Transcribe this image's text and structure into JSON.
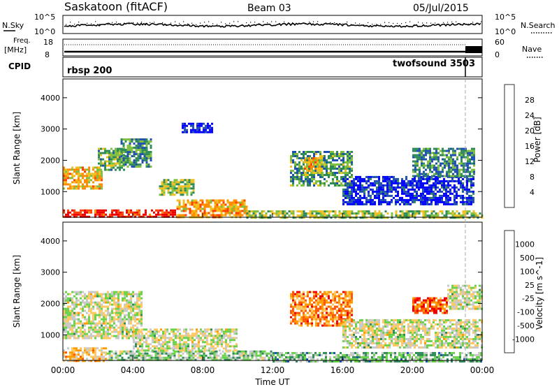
{
  "header": {
    "title": "Saskatoon (fitACF)",
    "beam": "Beam 03",
    "date": "05/Jul/2015"
  },
  "noise_panel": {
    "left_label": "N.Sky",
    "right_label": "N.Search",
    "left_ticks": [
      "10^5",
      "10^0"
    ],
    "right_ticks": [
      "10^5",
      "10^0"
    ]
  },
  "freq_panel": {
    "left_label_line1": "Freq.",
    "left_label_line2": "[MHz]",
    "right_label": "Nave",
    "left_ticks": [
      "18",
      "8"
    ],
    "right_ticks": [
      "60",
      "0"
    ]
  },
  "cpid_panel": {
    "label": "CPID",
    "program_1": "rbsp 200",
    "program_2": "twofsound 3503"
  },
  "x_axis": {
    "label": "Time UT",
    "ticks": [
      "00:00",
      "04:00",
      "08:00",
      "12:00",
      "16:00",
      "20:00",
      "00:00"
    ]
  },
  "colors": {
    "power": [
      "#0000ff",
      "#1f4fb0",
      "#2e8b57",
      "#7fbf3f",
      "#f0c020",
      "#ff8c00",
      "#ff4000",
      "#ee0000"
    ],
    "velocity": [
      "#ee0000",
      "#ff5500",
      "#ff9a00",
      "#ffc860",
      "#c8c8c8",
      "#6ad24a",
      "#2e8b57",
      "#1a50b0",
      "#0000cc"
    ]
  },
  "chart_data": [
    {
      "type": "heatmap",
      "title": "",
      "quantity": "Power",
      "ylabel": "Slant Range [km]",
      "xlabel": "",
      "yticks": [
        1000,
        2000,
        3000,
        4000
      ],
      "ylim": [
        180,
        4600
      ],
      "x_range_hours": [
        0,
        24
      ],
      "colorbar": {
        "label": "Power [dB]",
        "ticks": [
          "4",
          "8",
          "12",
          "16",
          "20",
          "24",
          "28"
        ],
        "range": [
          0,
          32
        ]
      },
      "regions": [
        {
          "t0": 0.0,
          "t1": 6.5,
          "r0": 180,
          "r1": 430,
          "level": 0.88
        },
        {
          "t0": 6.5,
          "t1": 10.5,
          "r0": 180,
          "r1": 750,
          "level": 0.65
        },
        {
          "t0": 10.5,
          "t1": 24.0,
          "r0": 180,
          "r1": 400,
          "level": 0.45
        },
        {
          "t0": 0.0,
          "t1": 2.2,
          "r0": 1100,
          "r1": 1800,
          "level": 0.6
        },
        {
          "t0": 2.0,
          "t1": 3.5,
          "r0": 1700,
          "r1": 2400,
          "level": 0.4
        },
        {
          "t0": 3.3,
          "t1": 5.0,
          "r0": 1800,
          "r1": 2700,
          "level": 0.3
        },
        {
          "t0": 5.5,
          "t1": 7.5,
          "r0": 900,
          "r1": 1400,
          "level": 0.45
        },
        {
          "t0": 13.0,
          "t1": 16.5,
          "r0": 1200,
          "r1": 2300,
          "level": 0.35
        },
        {
          "t0": 13.8,
          "t1": 14.8,
          "r0": 1600,
          "r1": 2100,
          "level": 0.6
        },
        {
          "t0": 16.0,
          "t1": 23.5,
          "r0": 600,
          "r1": 1500,
          "level": 0.1
        },
        {
          "t0": 20.0,
          "t1": 23.5,
          "r0": 1500,
          "r1": 2400,
          "level": 0.3
        },
        {
          "t0": 6.8,
          "t1": 8.5,
          "r0": 2900,
          "r1": 3200,
          "level": 0.08
        }
      ]
    },
    {
      "type": "heatmap",
      "title": "",
      "quantity": "Velocity",
      "ylabel": "Slant Range [km]",
      "xlabel": "Time UT",
      "yticks": [
        1000,
        2000,
        3000,
        4000
      ],
      "ylim": [
        180,
        4600
      ],
      "x_range_hours": [
        0,
        24
      ],
      "colorbar": {
        "label": "Velocity [m s^-1]",
        "ticks": [
          "1000",
          "500",
          "100",
          "25",
          "-25",
          "-100",
          "-500",
          "-1000"
        ],
        "range": [
          -1000,
          1000
        ]
      },
      "regions": [
        {
          "t0": 0.0,
          "t1": 2.5,
          "r0": 180,
          "r1": 600,
          "level": 0.35
        },
        {
          "t0": 2.5,
          "t1": 12.0,
          "r0": 180,
          "r1": 500,
          "level": 0.6
        },
        {
          "t0": 0.0,
          "t1": 4.5,
          "r0": 900,
          "r1": 2400,
          "level": 0.5
        },
        {
          "t0": 4.0,
          "t1": 10.0,
          "r0": 500,
          "r1": 1200,
          "level": 0.5
        },
        {
          "t0": 13.0,
          "t1": 16.5,
          "r0": 1300,
          "r1": 2400,
          "level": 0.25
        },
        {
          "t0": 16.0,
          "t1": 24.0,
          "r0": 600,
          "r1": 1500,
          "level": 0.5
        },
        {
          "t0": 20.0,
          "t1": 22.0,
          "r0": 1700,
          "r1": 2200,
          "level": 0.18
        },
        {
          "t0": 22.0,
          "t1": 24.0,
          "r0": 1800,
          "r1": 2600,
          "level": 0.5
        },
        {
          "t0": 12.0,
          "t1": 24.0,
          "r0": 180,
          "r1": 450,
          "level": 0.62
        }
      ]
    }
  ]
}
